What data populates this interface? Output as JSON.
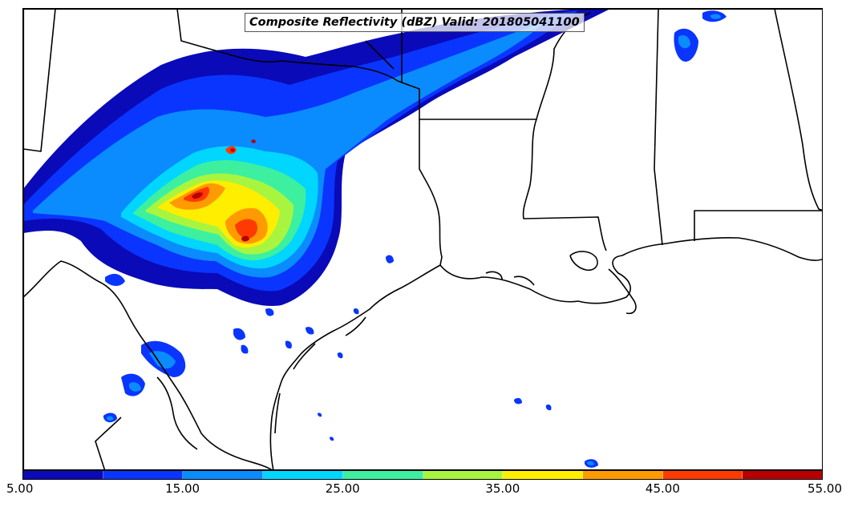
{
  "title": "Composite Reflectivity (dBZ) Valid: 201805041100",
  "colorbar": {
    "colors": [
      "#0a0ab8",
      "#0a35ff",
      "#0a8cff",
      "#00d6ff",
      "#3cf0a0",
      "#a8f540",
      "#ffee00",
      "#ff9a00",
      "#ff3a00",
      "#b80000"
    ],
    "tick_labels": [
      "5.00",
      "15.00",
      "25.00",
      "35.00",
      "45.00",
      "55.00"
    ]
  },
  "map": {
    "land_color": "#ffffff",
    "border_color": "#000000",
    "features": [
      "state-borders",
      "coastline",
      "radar-reflectivity-field"
    ]
  }
}
